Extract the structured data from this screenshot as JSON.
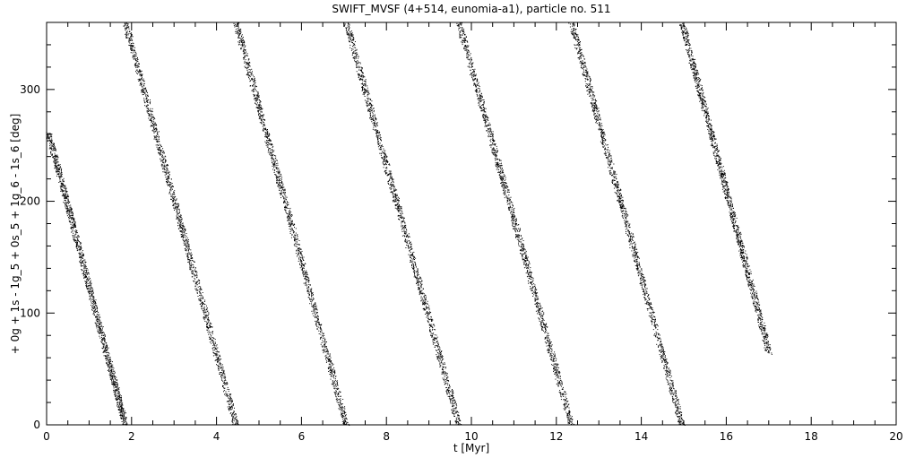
{
  "chart_data": {
    "type": "scatter",
    "title": "SWIFT_MVSF (4+514, eunomia-a1), particle no. 511",
    "xlabel": "t [Myr]",
    "ylabel": "+ 0g + 1s - 1g_5 + 0s_5 + 1g_6 - 1s_6 [deg]",
    "xlim": [
      0,
      20
    ],
    "ylim": [
      0,
      360
    ],
    "x_ticks": [
      0,
      2,
      4,
      6,
      8,
      10,
      12,
      14,
      16,
      18,
      20
    ],
    "y_ticks": [
      0,
      100,
      200,
      300
    ],
    "x_tick_labels": [
      "0",
      "2",
      "4",
      "6",
      "8",
      "10",
      "12",
      "14",
      "16",
      "18",
      "20"
    ],
    "y_tick_labels": [
      "0",
      "100",
      "200",
      "300"
    ],
    "grid": false,
    "marker_color": "#000000",
    "series": [
      {
        "segments": [
          {
            "x_start": 0.05,
            "y_start": 260,
            "x_end": 1.85,
            "y_end": 0
          },
          {
            "x_start": 1.85,
            "y_start": 360,
            "x_end": 4.45,
            "y_end": 0
          },
          {
            "x_start": 4.45,
            "y_start": 360,
            "x_end": 7.05,
            "y_end": 0
          },
          {
            "x_start": 7.05,
            "y_start": 360,
            "x_end": 9.7,
            "y_end": 0
          },
          {
            "x_start": 9.7,
            "y_start": 360,
            "x_end": 12.35,
            "y_end": 0
          },
          {
            "x_start": 12.35,
            "y_start": 360,
            "x_end": 14.95,
            "y_end": 0
          },
          {
            "x_start": 14.95,
            "y_start": 360,
            "x_end": 17.0,
            "y_end": 65
          }
        ]
      }
    ]
  }
}
